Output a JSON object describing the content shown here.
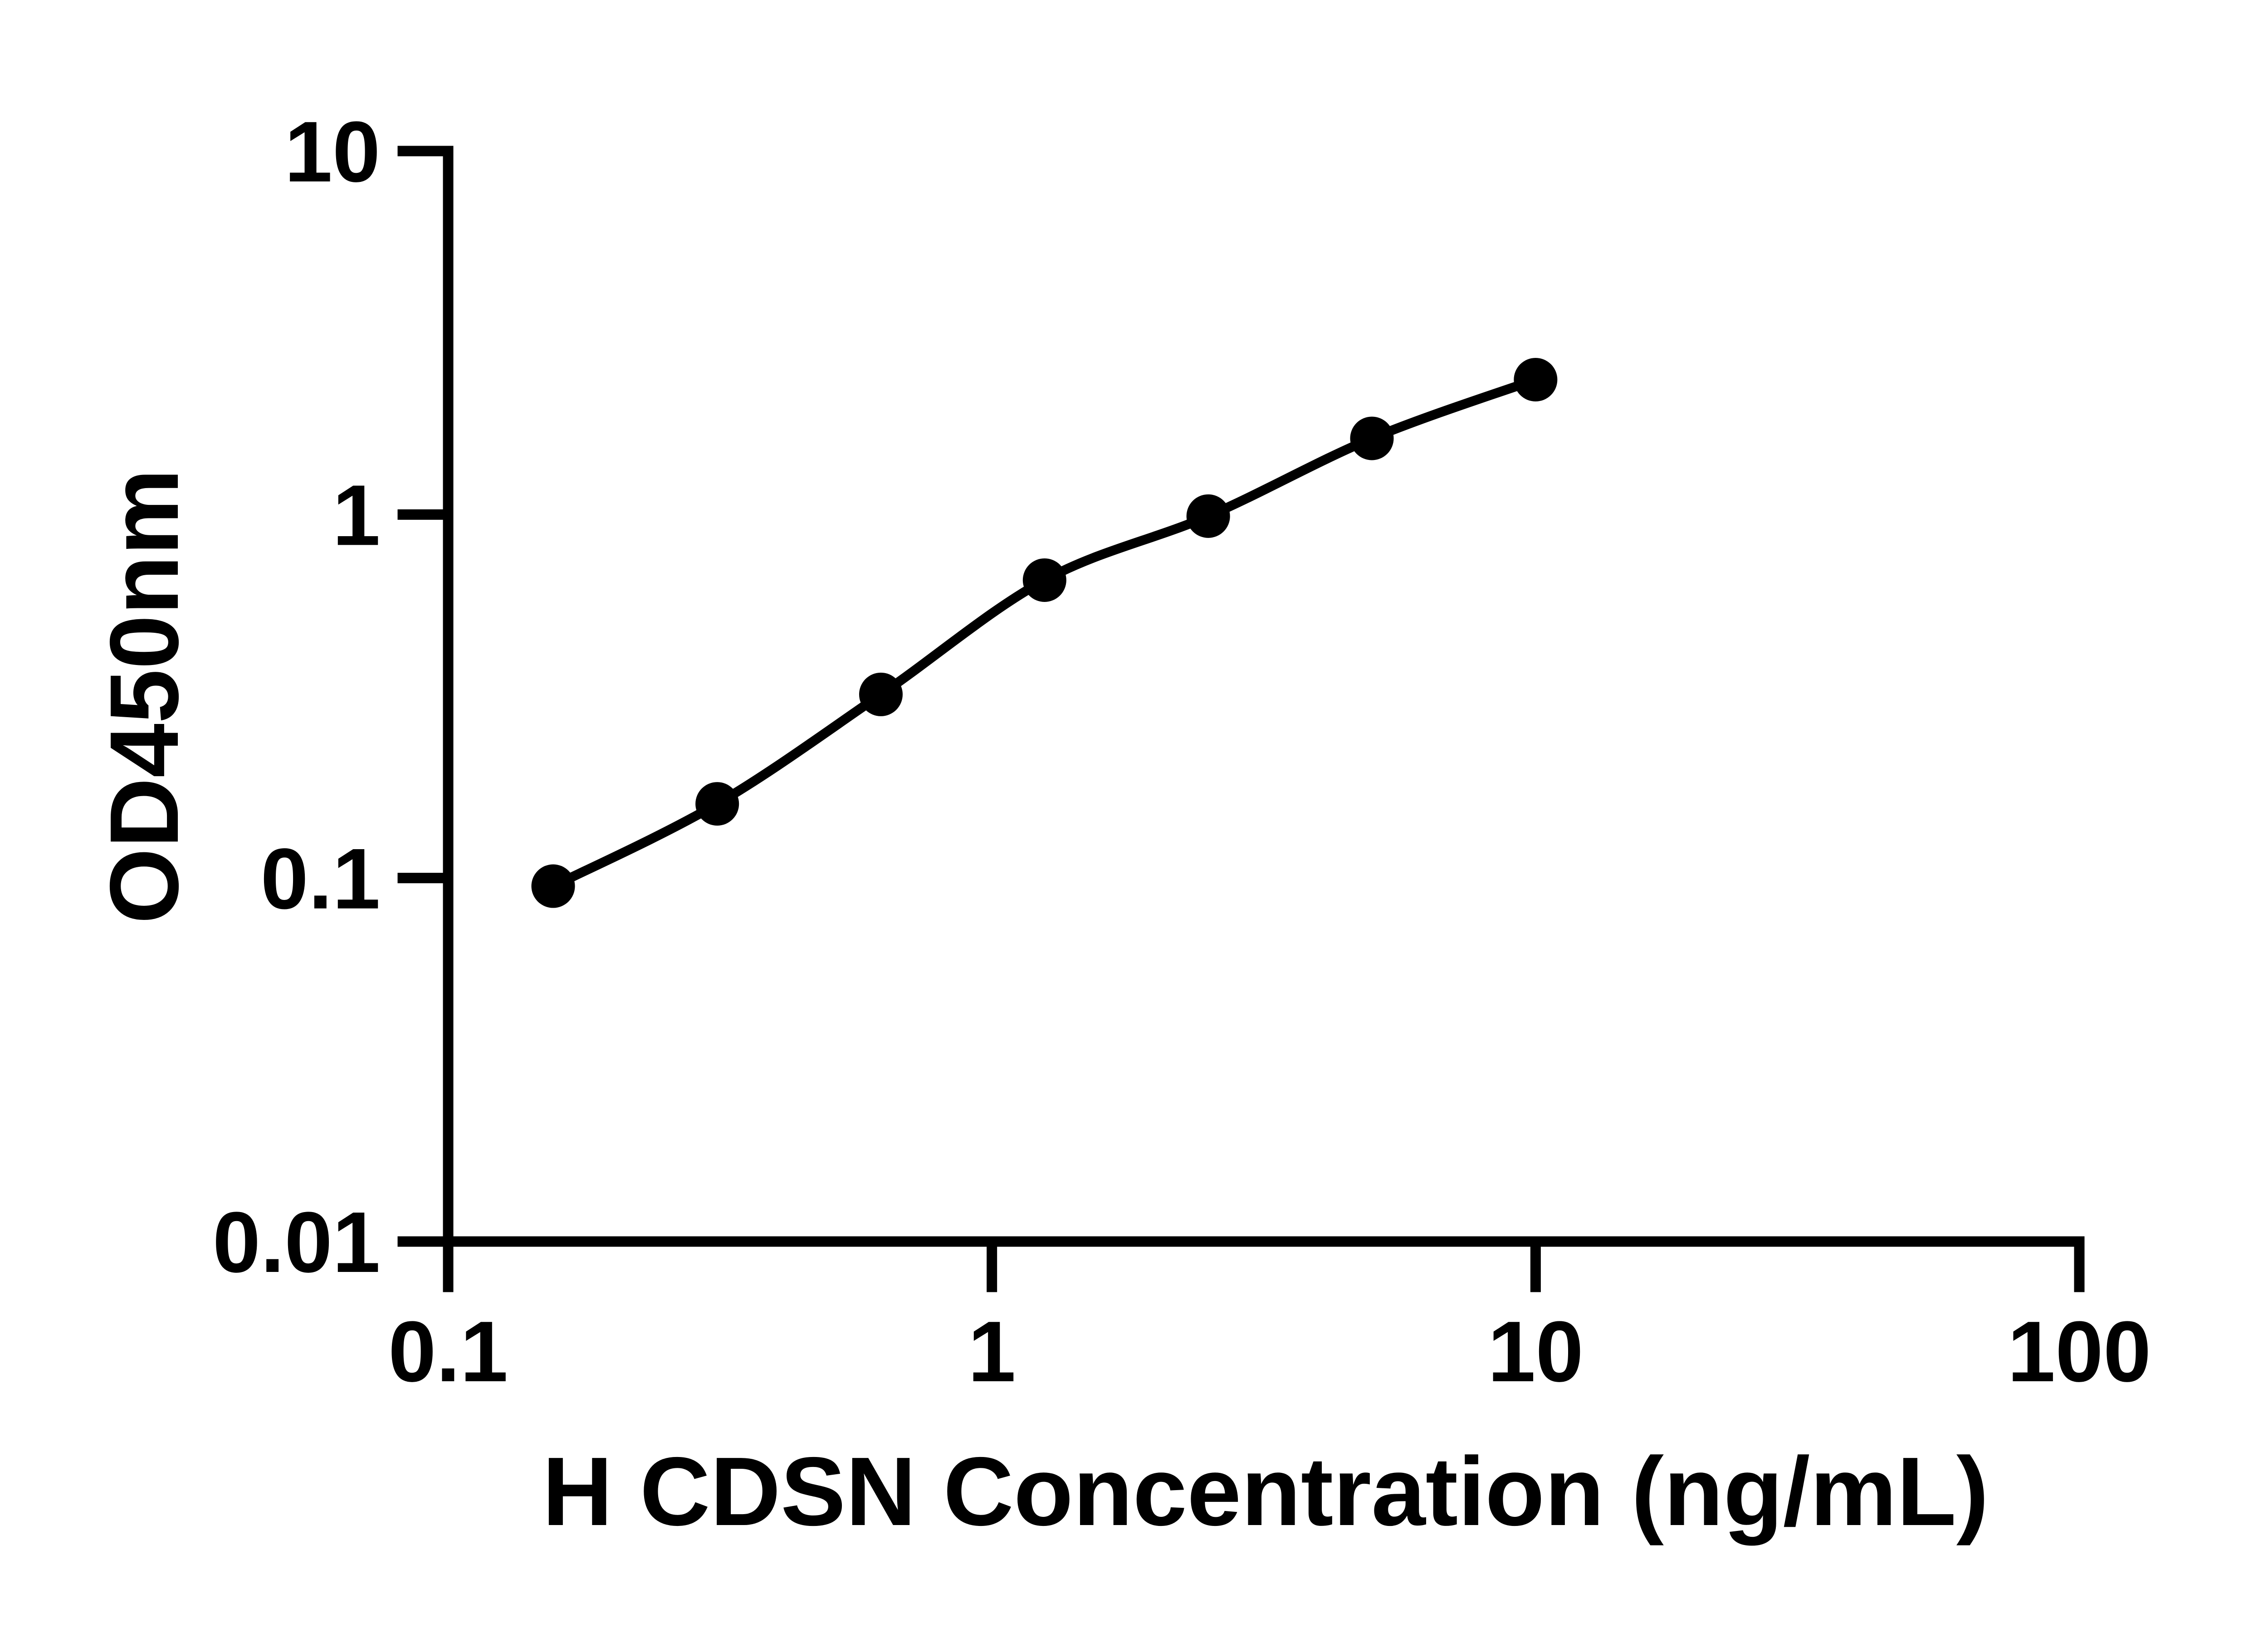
{
  "figure": {
    "background_color": "#ffffff",
    "ink_color": "#000000"
  },
  "chart_data": {
    "type": "scatter",
    "title": "",
    "xlabel": "H CDSN Concentration (ng/mL)",
    "ylabel": "OD450nm",
    "x_scale": "log",
    "y_scale": "log",
    "xlim": [
      0.1,
      100
    ],
    "ylim": [
      0.01,
      10
    ],
    "grid": false,
    "legend": false,
    "x_ticks": [
      {
        "value": 0.1,
        "label": "0.1"
      },
      {
        "value": 1,
        "label": "1"
      },
      {
        "value": 10,
        "label": "10"
      },
      {
        "value": 100,
        "label": "100"
      }
    ],
    "y_ticks": [
      {
        "value": 10,
        "label": "10"
      },
      {
        "value": 1,
        "label": "1"
      },
      {
        "value": 0.1,
        "label": "0.1"
      },
      {
        "value": 0.01,
        "label": "0.01"
      }
    ],
    "series": [
      {
        "marker": "circle",
        "marker_color": "#000000",
        "line_style": "smooth",
        "line_color": "#000000",
        "points": [
          {
            "x": 0.156,
            "y": 0.095
          },
          {
            "x": 0.3125,
            "y": 0.16
          },
          {
            "x": 0.625,
            "y": 0.32
          },
          {
            "x": 1.25,
            "y": 0.66
          },
          {
            "x": 2.5,
            "y": 0.99
          },
          {
            "x": 5,
            "y": 1.62
          },
          {
            "x": 10,
            "y": 2.35
          }
        ]
      }
    ]
  }
}
